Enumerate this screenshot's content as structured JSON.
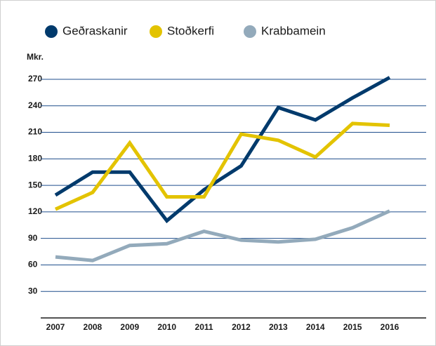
{
  "chart_data": {
    "type": "line",
    "y_label": "Mkr.",
    "categories": [
      "2007",
      "2008",
      "2009",
      "2010",
      "2011",
      "2012",
      "2013",
      "2014",
      "2015",
      "2016"
    ],
    "series": [
      {
        "name": "Geðraskanir",
        "color": "#003a6c",
        "values": [
          139,
          165,
          165,
          110,
          145,
          172,
          238,
          224,
          249,
          272
        ]
      },
      {
        "name": "Stoðkerfi",
        "color": "#e3c300",
        "values": [
          123,
          142,
          198,
          137,
          137,
          208,
          201,
          182,
          220,
          218
        ]
      },
      {
        "name": "Krabbamein",
        "color": "#93aabb",
        "values": [
          69,
          65,
          82,
          84,
          98,
          88,
          86,
          89,
          102,
          121
        ]
      }
    ],
    "ylim": [
      0,
      270
    ],
    "yticks": [
      30,
      60,
      90,
      120,
      150,
      180,
      210,
      240,
      270
    ],
    "grid": true
  }
}
